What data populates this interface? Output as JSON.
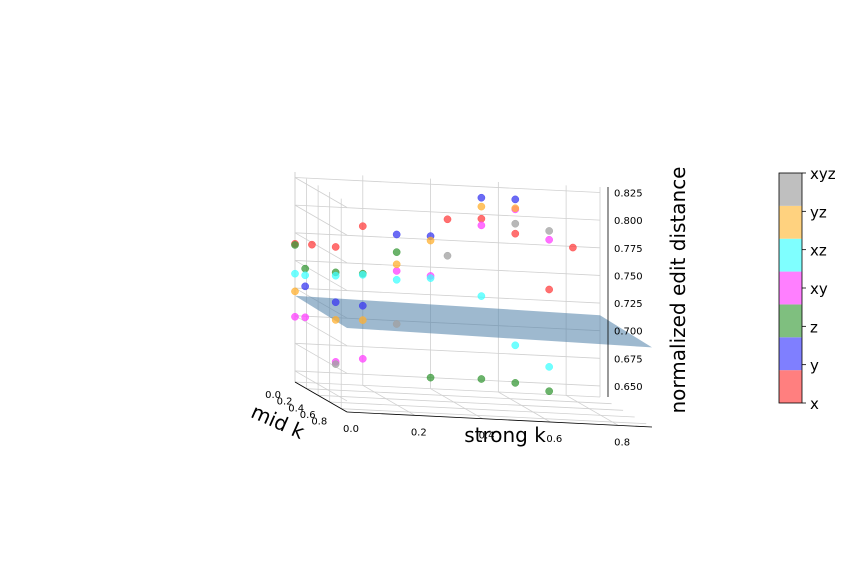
{
  "chart_data": {
    "type": "scatter",
    "subtype": "3d-scatter-with-fitted-plane",
    "xlabel": "mid k",
    "ylabel": "strong k",
    "zlabel": "normalized edit distance",
    "x_ticks": [
      "0.0",
      "0.2",
      "0.4",
      "0.6",
      "0.8"
    ],
    "y_ticks": [
      "0.0",
      "0.2",
      "0.4",
      "0.6",
      "0.8"
    ],
    "z_ticks": [
      "0.650",
      "0.675",
      "0.700",
      "0.725",
      "0.750",
      "0.775",
      "0.800",
      "0.825"
    ],
    "xlim": [
      0,
      0.9
    ],
    "ylim": [
      0,
      0.9
    ],
    "zlim": [
      0.64,
      0.83
    ],
    "grid": true,
    "plane": {
      "z_at": [
        {
          "x": 0.0,
          "y": 0.0,
          "z": 0.718
        },
        {
          "x": 0.9,
          "y": 0.0,
          "z": 0.716
        },
        {
          "x": 0.9,
          "y": 0.9,
          "z": 0.712
        },
        {
          "x": 0.0,
          "y": 0.9,
          "z": 0.714
        }
      ],
      "color": "#4f7fa8"
    },
    "colorbar": {
      "labels": [
        "x",
        "y",
        "z",
        "xy",
        "xz",
        "yz",
        "xyz"
      ],
      "colors": [
        "#ff7f7f",
        "#7f7fff",
        "#7fbf7f",
        "#ff7fff",
        "#7fffff",
        "#ffd27f",
        "#bfbfbf"
      ]
    },
    "point_colors": {
      "x": "#ff4040",
      "y": "#3a3af0",
      "z": "#3a9a3a",
      "xy": "#ff40ff",
      "xz": "#40ffff",
      "yz": "#ffb030",
      "xyz": "#a0a0a0"
    },
    "series": [
      {
        "name": "x",
        "points": [
          {
            "x": 0.0,
            "y": 0.0,
            "z": 0.765
          },
          {
            "x": 0.0,
            "y": 0.05,
            "z": 0.765
          },
          {
            "x": 0.0,
            "y": 0.12,
            "z": 0.764
          },
          {
            "x": 0.0,
            "y": 0.2,
            "z": 0.784
          },
          {
            "x": 0.0,
            "y": 0.45,
            "z": 0.794
          },
          {
            "x": 0.0,
            "y": 0.55,
            "z": 0.796
          },
          {
            "x": 0.0,
            "y": 0.65,
            "z": 0.784
          },
          {
            "x": 0.0,
            "y": 0.75,
            "z": 0.735
          },
          {
            "x": 0.0,
            "y": 0.82,
            "z": 0.774
          }
        ]
      },
      {
        "name": "y",
        "points": [
          {
            "x": 0.0,
            "y": 0.03,
            "z": 0.727
          },
          {
            "x": 0.0,
            "y": 0.12,
            "z": 0.714
          },
          {
            "x": 0.0,
            "y": 0.2,
            "z": 0.712
          },
          {
            "x": 0.0,
            "y": 0.3,
            "z": 0.778
          },
          {
            "x": 0.0,
            "y": 0.4,
            "z": 0.778
          },
          {
            "x": 0.0,
            "y": 0.55,
            "z": 0.815
          },
          {
            "x": 0.0,
            "y": 0.65,
            "z": 0.815
          }
        ]
      },
      {
        "name": "z",
        "points": [
          {
            "x": 0.0,
            "y": 0.0,
            "z": 0.764
          },
          {
            "x": 0.0,
            "y": 0.03,
            "z": 0.743
          },
          {
            "x": 0.0,
            "y": 0.12,
            "z": 0.741
          },
          {
            "x": 0.0,
            "y": 0.2,
            "z": 0.741
          },
          {
            "x": 0.0,
            "y": 0.3,
            "z": 0.762
          },
          {
            "x": 0.0,
            "y": 0.4,
            "z": 0.65
          },
          {
            "x": 0.0,
            "y": 0.55,
            "z": 0.651
          },
          {
            "x": 0.0,
            "y": 0.65,
            "z": 0.649
          },
          {
            "x": 0.0,
            "y": 0.75,
            "z": 0.643
          }
        ]
      },
      {
        "name": "xy",
        "points": [
          {
            "x": 0.0,
            "y": 0.0,
            "z": 0.699
          },
          {
            "x": 0.0,
            "y": 0.03,
            "z": 0.699
          },
          {
            "x": 0.0,
            "y": 0.12,
            "z": 0.66
          },
          {
            "x": 0.0,
            "y": 0.2,
            "z": 0.664
          },
          {
            "x": 0.0,
            "y": 0.3,
            "z": 0.745
          },
          {
            "x": 0.0,
            "y": 0.4,
            "z": 0.742
          },
          {
            "x": 0.0,
            "y": 0.55,
            "z": 0.79
          },
          {
            "x": 0.0,
            "y": 0.65,
            "z": 0.806
          },
          {
            "x": 0.0,
            "y": 0.75,
            "z": 0.78
          }
        ]
      },
      {
        "name": "xz",
        "points": [
          {
            "x": 0.0,
            "y": 0.0,
            "z": 0.738
          },
          {
            "x": 0.0,
            "y": 0.03,
            "z": 0.737
          },
          {
            "x": 0.0,
            "y": 0.12,
            "z": 0.738
          },
          {
            "x": 0.0,
            "y": 0.2,
            "z": 0.74
          },
          {
            "x": 0.0,
            "y": 0.3,
            "z": 0.737
          },
          {
            "x": 0.0,
            "y": 0.4,
            "z": 0.74
          },
          {
            "x": 0.0,
            "y": 0.55,
            "z": 0.726
          },
          {
            "x": 0.0,
            "y": 0.65,
            "z": 0.683
          },
          {
            "x": 0.0,
            "y": 0.75,
            "z": 0.665
          }
        ]
      },
      {
        "name": "yz",
        "points": [
          {
            "x": 0.0,
            "y": 0.0,
            "z": 0.722
          },
          {
            "x": 0.0,
            "y": 0.12,
            "z": 0.698
          },
          {
            "x": 0.0,
            "y": 0.2,
            "z": 0.699
          },
          {
            "x": 0.0,
            "y": 0.3,
            "z": 0.751
          },
          {
            "x": 0.0,
            "y": 0.4,
            "z": 0.774
          },
          {
            "x": 0.0,
            "y": 0.55,
            "z": 0.807
          },
          {
            "x": 0.0,
            "y": 0.65,
            "z": 0.807
          }
        ]
      },
      {
        "name": "xyz",
        "points": [
          {
            "x": 0.0,
            "y": 0.12,
            "z": 0.658
          },
          {
            "x": 0.0,
            "y": 0.3,
            "z": 0.697
          },
          {
            "x": 0.0,
            "y": 0.45,
            "z": 0.761
          },
          {
            "x": 0.0,
            "y": 0.65,
            "z": 0.793
          },
          {
            "x": 0.0,
            "y": 0.75,
            "z": 0.788
          }
        ]
      }
    ]
  }
}
